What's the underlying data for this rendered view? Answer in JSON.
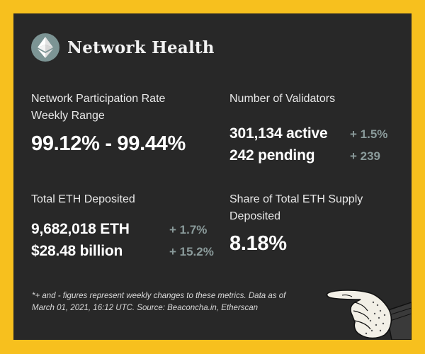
{
  "header": {
    "title": "Network Health",
    "logo_icon": "ethereum-diamond-icon"
  },
  "participation": {
    "label_line1": "Network Participation Rate",
    "label_line2": "Weekly Range",
    "value": "99.12% - 99.44%"
  },
  "validators": {
    "label": "Number of Validators",
    "active": "301,134 active",
    "active_change": "+ 1.5%",
    "pending": "242 pending",
    "pending_change": "+ 239"
  },
  "deposited": {
    "label": "Total ETH Deposited",
    "eth": "9,682,018 ETH",
    "eth_change": "+ 1.7%",
    "usd": "$28.48 billion",
    "usd_change": "+ 15.2%"
  },
  "share": {
    "label_line1": "Share of Total ETH Supply",
    "label_line2": "Deposited",
    "value": "8.18%"
  },
  "footnote": {
    "line1": "*+ and - figures represent weekly changes to these metrics. Data as of",
    "line2": "March 01, 2021, 16:12 UTC. Source: Beaconcha.in, Etherscan"
  },
  "illustration": {
    "icon": "pointing-hand-icon"
  },
  "colors": {
    "background": "#f7c01e",
    "card": "#282828",
    "change_text": "#8a9a9a",
    "logo_circle": "#7c9494"
  }
}
